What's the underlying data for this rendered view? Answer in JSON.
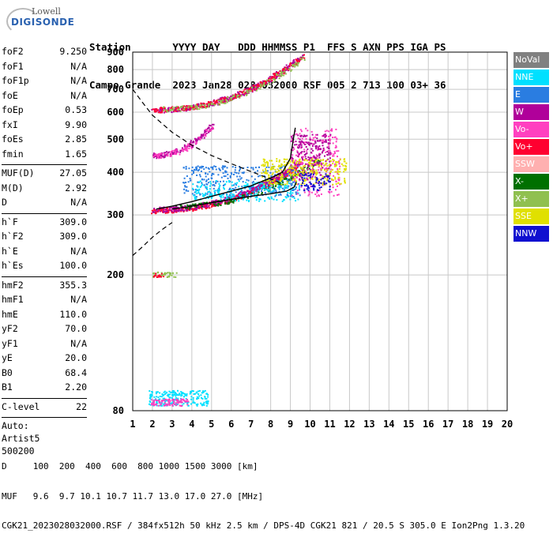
{
  "logo": {
    "brand": "Lowell",
    "product": "DIGISONDE"
  },
  "header": {
    "line1": "Station       YYYY DAY   DDD HHMMSS P1  FFS S AXN PPS IGA PS",
    "line2": "Campo Grande  2023 Jan28 028 032000 RSF 005 2 713 100 03+ 36"
  },
  "params": [
    {
      "k": "foF2",
      "v": "9.250"
    },
    {
      "k": "foF1",
      "v": "N/A"
    },
    {
      "k": "foF1p",
      "v": "N/A"
    },
    {
      "k": "foE",
      "v": "N/A"
    },
    {
      "k": "foEp",
      "v": "0.53"
    },
    {
      "k": "fxI",
      "v": "9.90"
    },
    {
      "k": "foEs",
      "v": "2.85"
    },
    {
      "k": "fmin",
      "v": "1.65"
    },
    {
      "k": "MUF(D)",
      "v": "27.05"
    },
    {
      "k": "M(D)",
      "v": "2.92"
    },
    {
      "k": "D",
      "v": "N/A"
    },
    {
      "k": "h`F",
      "v": "309.0"
    },
    {
      "k": "h`F2",
      "v": "309.0"
    },
    {
      "k": "h`E",
      "v": "N/A"
    },
    {
      "k": "h`Es",
      "v": "100.0"
    },
    {
      "k": "hmF2",
      "v": "355.3"
    },
    {
      "k": "hmF1",
      "v": "N/A"
    },
    {
      "k": "hmE",
      "v": "110.0"
    },
    {
      "k": "yF2",
      "v": "70.0"
    },
    {
      "k": "yF1",
      "v": "N/A"
    },
    {
      "k": "yE",
      "v": "20.0"
    },
    {
      "k": "B0",
      "v": "68.4"
    },
    {
      "k": "B1",
      "v": "2.20"
    },
    {
      "k": "C-level",
      "v": "22"
    }
  ],
  "autoscale": [
    "Auto:",
    "Artist5",
    "500200"
  ],
  "legend": [
    {
      "label": "NoVal",
      "color": "#808080"
    },
    {
      "label": "NNE",
      "color": "#00e0ff"
    },
    {
      "label": "E",
      "color": "#2a7de1"
    },
    {
      "label": "W",
      "color": "#b0009a"
    },
    {
      "label": "Vo-",
      "color": "#ff40c0"
    },
    {
      "label": "Vo+",
      "color": "#ff0030"
    },
    {
      "label": "SSW",
      "color": "#ffb0b0"
    },
    {
      "label": "X-",
      "color": "#007000"
    },
    {
      "label": "X+",
      "color": "#90c050"
    },
    {
      "label": "SSE",
      "color": "#e0e000"
    },
    {
      "label": "NNW",
      "color": "#1010d0"
    }
  ],
  "footer": {
    "line1": "D     100  200  400  600  800 1000 1500 3000 [km]",
    "line2": "MUF   9.6  9.7 10.1 10.7 11.7 13.0 17.0 27.0 [MHz]",
    "line3": "CGK21_2023028032000.RSF / 384fx512h 50 kHz 2.5 km / DPS-4D CGK21 821 / 20.5 S 305.0 E Ion2Png 1.3.20"
  },
  "chart_data": {
    "type": "scatter",
    "title": "",
    "xlabel": "",
    "ylabel": "",
    "xlim": [
      1,
      20
    ],
    "ylim": [
      80,
      900
    ],
    "y_scale": "log",
    "xticks": [
      1,
      2,
      3,
      4,
      5,
      6,
      7,
      8,
      9,
      10,
      11,
      12,
      13,
      14,
      15,
      16,
      17,
      18,
      19,
      20
    ],
    "yticks": [
      80,
      200,
      300,
      400,
      500,
      600,
      700,
      800,
      900
    ],
    "grid": true,
    "legend_position": "right",
    "traces": [
      {
        "kind": "profile_solid",
        "points": [
          [
            2.2,
            312
          ],
          [
            3,
            318
          ],
          [
            4,
            328
          ],
          [
            5,
            340
          ],
          [
            6,
            352
          ],
          [
            7,
            365
          ],
          [
            8,
            385
          ],
          [
            8.6,
            400
          ],
          [
            9.0,
            440
          ],
          [
            9.15,
            500
          ],
          [
            9.25,
            540
          ]
        ]
      },
      {
        "kind": "profile_lower",
        "points": [
          [
            3,
            312
          ],
          [
            4,
            318
          ],
          [
            5,
            326
          ],
          [
            6,
            333
          ],
          [
            7,
            340
          ],
          [
            8,
            346
          ],
          [
            8.8,
            352
          ],
          [
            9.2,
            362
          ],
          [
            9.3,
            375
          ]
        ]
      },
      {
        "kind": "dashed_low",
        "points": [
          [
            1,
            228
          ],
          [
            1.5,
            242
          ],
          [
            2,
            258
          ],
          [
            2.5,
            272
          ],
          [
            3,
            285
          ]
        ]
      },
      {
        "kind": "dashed_high",
        "points": [
          [
            1,
            700
          ],
          [
            1.5,
            640
          ],
          [
            2,
            588
          ],
          [
            3,
            524
          ],
          [
            4,
            480
          ],
          [
            5,
            448
          ],
          [
            6,
            424
          ],
          [
            7,
            402
          ],
          [
            8,
            382
          ],
          [
            8.6,
            370
          ]
        ]
      }
    ],
    "clusters": [
      {
        "kind": "trace",
        "from": [
          2.0,
          310
        ],
        "to": [
          9.4,
          420
        ],
        "color": "#ff0030",
        "n": 420
      },
      {
        "kind": "trace",
        "from": [
          2.0,
          312
        ],
        "to": [
          9.5,
          430
        ],
        "color": "#b0009a",
        "n": 300
      },
      {
        "kind": "trace",
        "from": [
          3.0,
          318
        ],
        "to": [
          10.5,
          440
        ],
        "color": "#007000",
        "n": 180
      },
      {
        "kind": "trace",
        "from": [
          2.0,
          610
        ],
        "to": [
          9.6,
          880
        ],
        "color": "#b0009a",
        "n": 360
      },
      {
        "kind": "trace",
        "from": [
          2.0,
          612
        ],
        "to": [
          9.6,
          875
        ],
        "color": "#ff0030",
        "n": 240
      },
      {
        "kind": "trace",
        "from": [
          2.5,
          615
        ],
        "to": [
          9.6,
          870
        ],
        "color": "#90c050",
        "n": 160
      },
      {
        "kind": "trace",
        "from": [
          2.0,
          450
        ],
        "to": [
          5.0,
          550
        ],
        "color": "#b0009a",
        "n": 150
      },
      {
        "kind": "trace",
        "from": [
          2.0,
          448
        ],
        "to": [
          5.0,
          545
        ],
        "color": "#ff40c0",
        "n": 80
      },
      {
        "kind": "blob",
        "x": [
          3.5,
          9.5
        ],
        "y": [
          340,
          420
        ],
        "color": "#2a7de1",
        "n": 360
      },
      {
        "kind": "blob",
        "x": [
          4.0,
          9.5
        ],
        "y": [
          330,
          380
        ],
        "color": "#00e0ff",
        "n": 220
      },
      {
        "kind": "blob",
        "x": [
          9.0,
          11.5
        ],
        "y": [
          340,
          540
        ],
        "color": "#ff40c0",
        "n": 260
      },
      {
        "kind": "blob",
        "x": [
          9.0,
          11.0
        ],
        "y": [
          380,
          520
        ],
        "color": "#b0009a",
        "n": 200
      },
      {
        "kind": "blob",
        "x": [
          7.5,
          11.8
        ],
        "y": [
          370,
          440
        ],
        "color": "#e0e000",
        "n": 300
      },
      {
        "kind": "blob",
        "x": [
          9.5,
          11.0
        ],
        "y": [
          355,
          400
        ],
        "color": "#1010d0",
        "n": 70
      },
      {
        "kind": "blob",
        "x": [
          1.8,
          4.8
        ],
        "y": [
          83,
          92
        ],
        "color": "#00e0ff",
        "n": 220
      },
      {
        "kind": "blob",
        "x": [
          1.9,
          3.8
        ],
        "y": [
          83,
          87
        ],
        "color": "#ff40c0",
        "n": 90
      },
      {
        "kind": "blob",
        "x": [
          2.0,
          3.2
        ],
        "y": [
          198,
          205
        ],
        "color": "#90c050",
        "n": 40
      },
      {
        "kind": "blob",
        "x": [
          2.0,
          2.6
        ],
        "y": [
          198,
          203
        ],
        "color": "#ff0030",
        "n": 16
      }
    ]
  }
}
